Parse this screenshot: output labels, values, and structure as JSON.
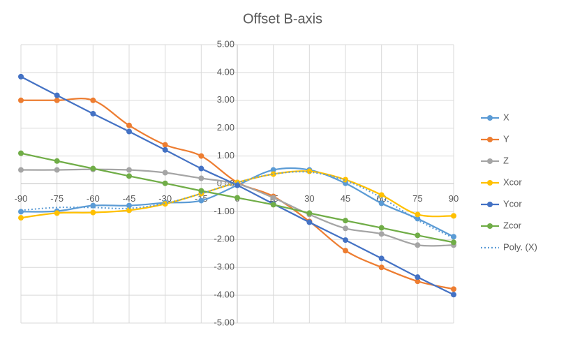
{
  "chart_data": {
    "type": "line",
    "title": "Offset B-axis",
    "x": [
      -90,
      -75,
      -60,
      -45,
      -30,
      -15,
      0,
      15,
      30,
      45,
      60,
      75,
      90
    ],
    "xlim": [
      -90,
      90
    ],
    "xticks": [
      -90,
      -75,
      -60,
      -45,
      -30,
      -15,
      0,
      15,
      30,
      45,
      60,
      75,
      90
    ],
    "ylim": [
      -5,
      5
    ],
    "yticks": [
      {
        "value": 5,
        "label": "5.00"
      },
      {
        "value": 4,
        "label": "4.00"
      },
      {
        "value": 3,
        "label": "3.00"
      },
      {
        "value": 2,
        "label": "2.00"
      },
      {
        "value": 1,
        "label": "1.00"
      },
      {
        "value": 0,
        "label": "0.00"
      },
      {
        "value": -1,
        "label": "-1.00"
      },
      {
        "value": -2,
        "label": "-2.00"
      },
      {
        "value": -3,
        "label": "-3.00"
      },
      {
        "value": -4,
        "label": "-4.00"
      },
      {
        "value": -5,
        "label": "-5.00"
      }
    ],
    "grid": true,
    "smooth": true,
    "legend": "right",
    "series": [
      {
        "name": "X",
        "color": "#5b9bd5",
        "values": [
          -1.0,
          -0.98,
          -0.78,
          -0.78,
          -0.68,
          -0.6,
          -0.05,
          0.5,
          0.5,
          0.02,
          -0.7,
          -1.25,
          -1.9
        ]
      },
      {
        "name": "Y",
        "color": "#ed7d31",
        "values": [
          3.0,
          3.0,
          3.0,
          2.1,
          1.4,
          1.0,
          0.05,
          -0.45,
          -1.35,
          -2.4,
          -3.0,
          -3.5,
          -3.78
        ]
      },
      {
        "name": "Z",
        "color": "#a5a5a5",
        "values": [
          0.5,
          0.5,
          0.52,
          0.5,
          0.4,
          0.2,
          0.0,
          -0.5,
          -1.1,
          -1.6,
          -1.8,
          -2.2,
          -2.2
        ]
      },
      {
        "name": "Xcor",
        "color": "#ffc000",
        "values": [
          -1.22,
          -1.05,
          -1.03,
          -0.95,
          -0.72,
          -0.35,
          0.05,
          0.35,
          0.45,
          0.15,
          -0.4,
          -1.1,
          -1.15
        ]
      },
      {
        "name": "Ycor",
        "color": "#4472c4",
        "values": [
          3.85,
          3.18,
          2.52,
          1.88,
          1.22,
          0.55,
          -0.05,
          -0.72,
          -1.38,
          -2.02,
          -2.68,
          -3.35,
          -3.98
        ]
      },
      {
        "name": "Zcor",
        "color": "#70ad47",
        "values": [
          1.1,
          0.82,
          0.55,
          0.28,
          0.02,
          -0.25,
          -0.5,
          -0.75,
          -1.05,
          -1.32,
          -1.58,
          -1.85,
          -2.1
        ]
      },
      {
        "name": "Poly. (X)",
        "color": "#5b9bd5",
        "style": "dotted",
        "values": [
          -0.95,
          -0.85,
          -0.85,
          -0.88,
          -0.7,
          -0.35,
          0.05,
          0.35,
          0.42,
          0.12,
          -0.5,
          -1.3,
          -1.95
        ]
      }
    ]
  }
}
